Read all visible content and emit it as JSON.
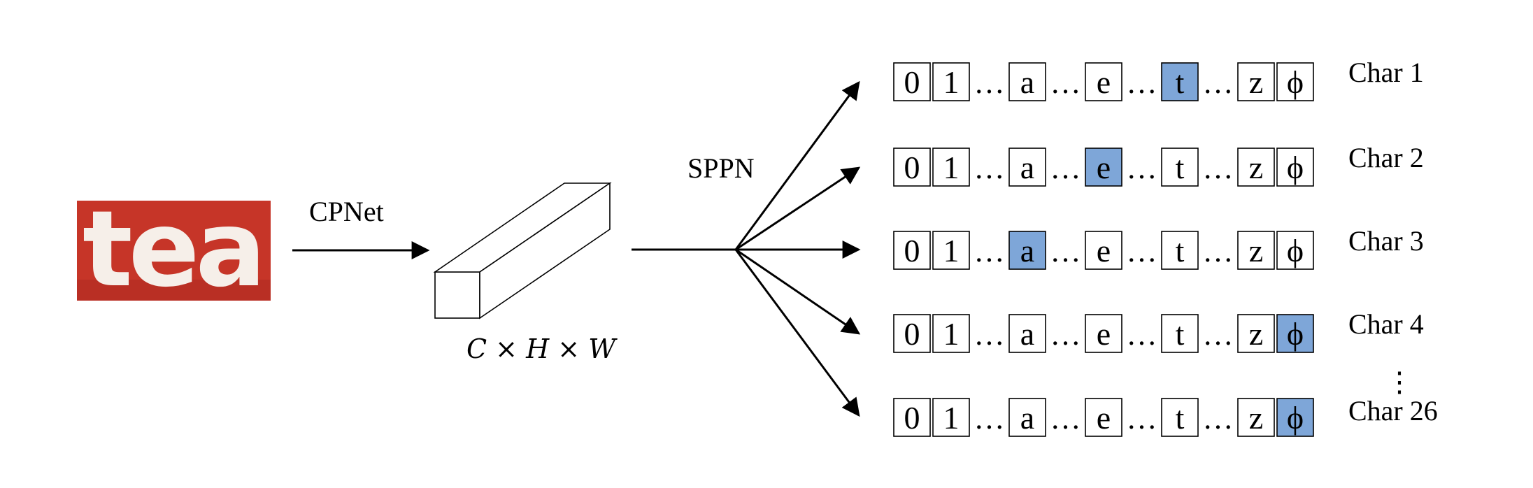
{
  "input_image": {
    "word": "tea",
    "background_color": "#c63528",
    "text_color": "#f6efe9"
  },
  "labels": {
    "cpnet": "CPNet",
    "sppn": "SPPN",
    "feature_shape": "C × H × W"
  },
  "highlight_color": "#7ea6d8",
  "sequence_cells": [
    "0",
    "1",
    "…",
    "a",
    "…",
    "e",
    "…",
    "t",
    "…",
    "z",
    "ϕ"
  ],
  "rows": [
    {
      "label": "Char 1",
      "highlight": "t"
    },
    {
      "label": "Char 2",
      "highlight": "e"
    },
    {
      "label": "Char 3",
      "highlight": "a"
    },
    {
      "label": "Char 4",
      "highlight": "ϕ"
    },
    {
      "label": "Char 26",
      "highlight": "ϕ"
    }
  ],
  "vertical_ellipsis": "⋮"
}
